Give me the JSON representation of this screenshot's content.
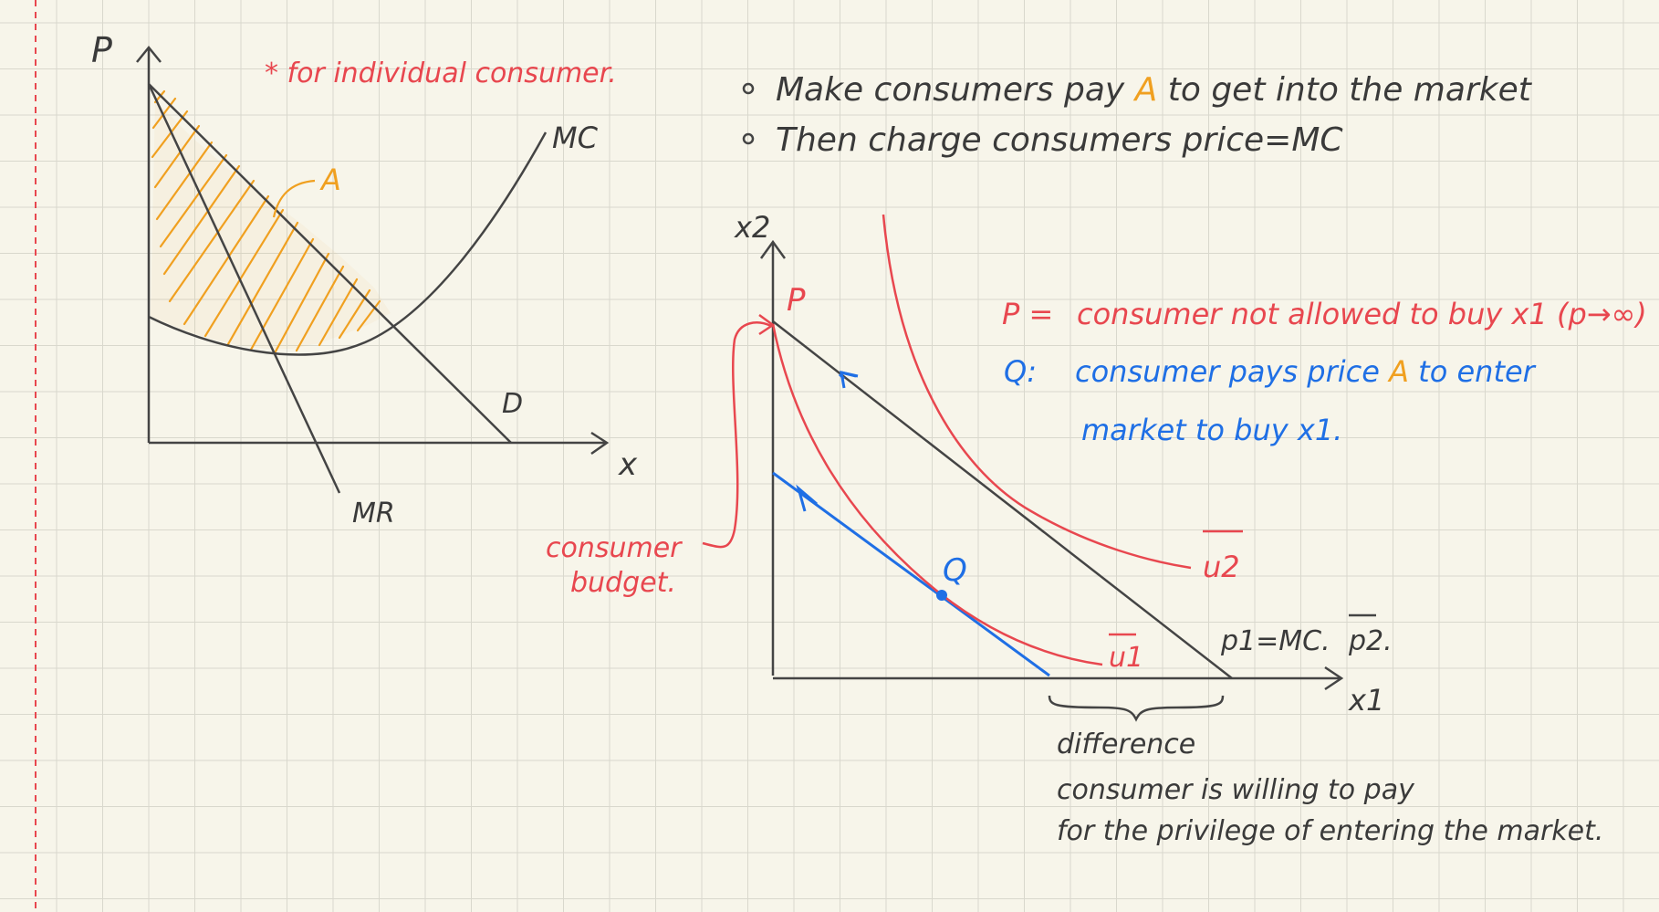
{
  "colors": {
    "paper": "#f7f5ea",
    "grid": "#d9d8cd",
    "margin_line": "#e8474f",
    "ink": "#444444",
    "red": "#e8474f",
    "blue": "#1f6fe5",
    "orange": "#f0a020"
  },
  "left_diagram": {
    "axis_y_label": "P",
    "axis_x_label": "x",
    "note": "* for individual consumer.",
    "mc_label": "MC",
    "area_label": "A",
    "demand_label": "D",
    "mr_label": "MR"
  },
  "bullets": [
    {
      "pre": "Make consumers pay ",
      "highlight": "A",
      "post": " to get into the market"
    },
    {
      "pre": "Then charge consumers  price=MC",
      "highlight": "",
      "post": ""
    }
  ],
  "right_diagram": {
    "axis_y_label": "x2",
    "axis_x_label": "x1",
    "point_p": "P",
    "point_q": "Q",
    "u1_label": "u1",
    "u2_label": "u2",
    "price_note_a": "p1=MC.",
    "price_note_b": "p2.",
    "budget_label_1": "consumer",
    "budget_label_2": "budget."
  },
  "legend": {
    "p_key": "P =",
    "p_text": "consumer not allowed to buy x1  (p→∞)",
    "q_key": "Q:",
    "q_line1_pre": "consumer pays price ",
    "q_line1_highlight": "A",
    "q_line1_post": " to enter",
    "q_line2": "market to buy x1."
  },
  "difference_note": {
    "line1": "difference",
    "line2": "consumer is willing to pay",
    "line3": "for the privilege of entering the market."
  }
}
